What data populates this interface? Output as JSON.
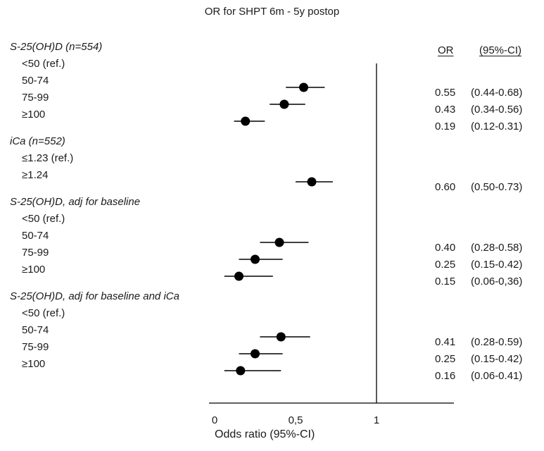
{
  "chart_data": {
    "type": "forest",
    "title": "OR for SHPT 6m - 5y postop",
    "xlabel": "Odds ratio (95%-CI)",
    "xlim": [
      0,
      1.4
    ],
    "x_ticks": [
      0,
      0.5,
      1
    ],
    "x_tick_labels": [
      "0",
      "0,5",
      "1"
    ],
    "reference_line": 1,
    "columns": {
      "or": "OR",
      "ci": "(95%-CI)"
    },
    "groups": [
      {
        "label": "S-25(OH)D (n=554)",
        "rows": [
          {
            "label": "<50 (ref.)",
            "reference": true
          },
          {
            "label": "50-74",
            "or": 0.55,
            "ci_low": 0.44,
            "ci_high": 0.68,
            "or_text": "0.55",
            "ci_text": "(0.44-0.68)"
          },
          {
            "label": "75-99",
            "or": 0.43,
            "ci_low": 0.34,
            "ci_high": 0.56,
            "or_text": "0.43",
            "ci_text": "(0.34-0.56)"
          },
          {
            "label": "≥100",
            "or": 0.19,
            "ci_low": 0.12,
            "ci_high": 0.31,
            "or_text": "0.19",
            "ci_text": "(0.12-0.31)"
          }
        ]
      },
      {
        "label": "iCa (n=552)",
        "rows": [
          {
            "label": "≤1.23 (ref.)",
            "reference": true
          },
          {
            "label": "≥1.24",
            "or": 0.6,
            "ci_low": 0.5,
            "ci_high": 0.73,
            "or_text": "0.60",
            "ci_text": "(0.50-0.73)"
          }
        ]
      },
      {
        "label": "S-25(OH)D, adj for baseline",
        "rows": [
          {
            "label": "<50 (ref.)",
            "reference": true
          },
          {
            "label": "50-74",
            "or": 0.4,
            "ci_low": 0.28,
            "ci_high": 0.58,
            "or_text": "0.40",
            "ci_text": "(0.28-0.58)"
          },
          {
            "label": "75-99",
            "or": 0.25,
            "ci_low": 0.15,
            "ci_high": 0.42,
            "or_text": "0.25",
            "ci_text": "(0.15-0.42)"
          },
          {
            "label": "≥100",
            "or": 0.15,
            "ci_low": 0.06,
            "ci_high": 0.36,
            "or_text": "0.15",
            "ci_text": "(0.06-0,36)"
          }
        ]
      },
      {
        "label": "S-25(OH)D, adj for baseline and iCa",
        "rows": [
          {
            "label": "<50 (ref.)",
            "reference": true
          },
          {
            "label": "50-74",
            "or": 0.41,
            "ci_low": 0.28,
            "ci_high": 0.59,
            "or_text": "0.41",
            "ci_text": "(0.28-0.59)"
          },
          {
            "label": "75-99",
            "or": 0.25,
            "ci_low": 0.15,
            "ci_high": 0.42,
            "or_text": "0.25",
            "ci_text": "(0.15-0.42)"
          },
          {
            "label": "≥100",
            "or": 0.16,
            "ci_low": 0.06,
            "ci_high": 0.41,
            "or_text": "0.16",
            "ci_text": "(0.06-0.41)"
          }
        ]
      }
    ],
    "colors": {
      "marker": "#000000",
      "line": "#000000",
      "text": "#1a1a1a"
    }
  }
}
